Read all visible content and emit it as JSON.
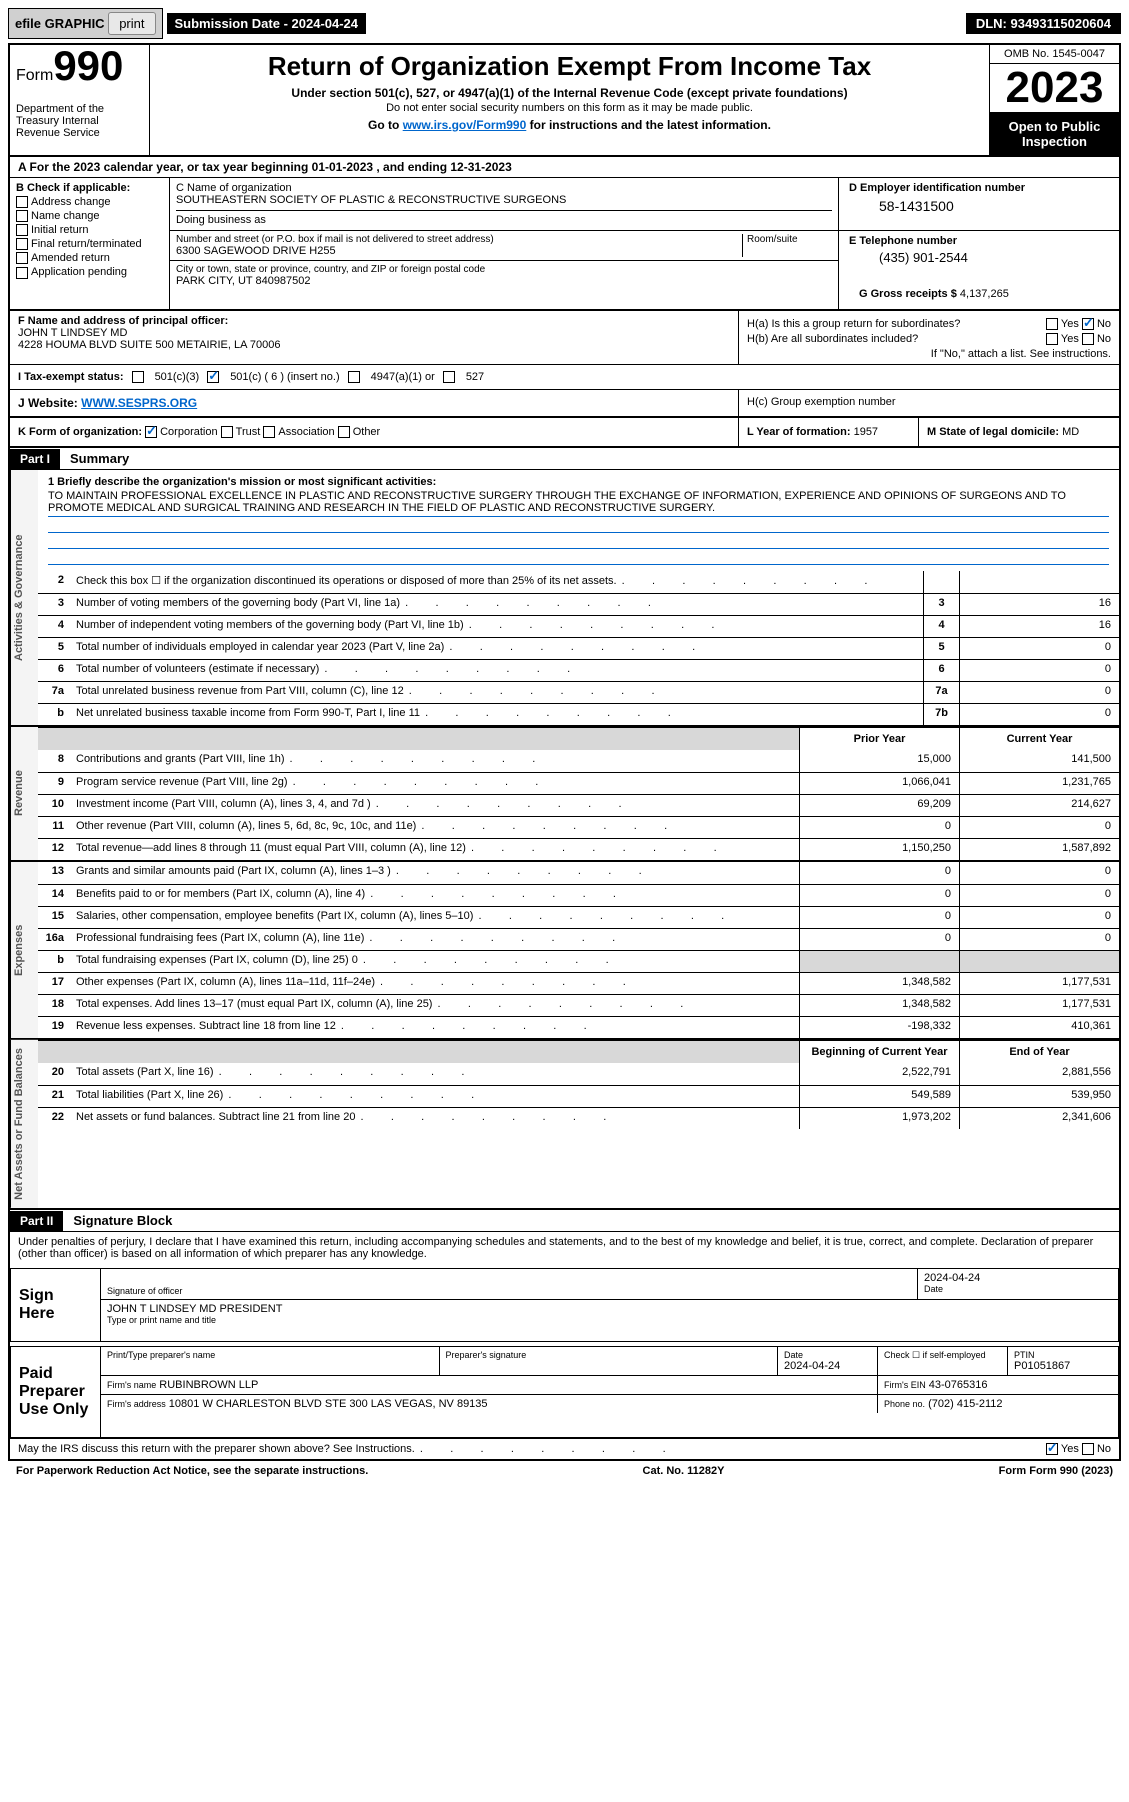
{
  "top": {
    "efile": "efile GRAPHIC",
    "print": "print",
    "submission": "Submission Date - 2024-04-24",
    "dln": "DLN: 93493115020604"
  },
  "header": {
    "form_label": "Form",
    "form_num": "990",
    "dept": "Department of the Treasury Internal Revenue Service",
    "title": "Return of Organization Exempt From Income Tax",
    "sub1": "Under section 501(c), 527, or 4947(a)(1) of the Internal Revenue Code (except private foundations)",
    "sub2": "Do not enter social security numbers on this form as it may be made public.",
    "goto_prefix": "Go to ",
    "goto_link": "www.irs.gov/Form990",
    "goto_suffix": " for instructions and the latest information.",
    "omb": "OMB No. 1545-0047",
    "year": "2023",
    "open": "Open to Public Inspection"
  },
  "row_a": "A  For the 2023 calendar year, or tax year beginning 01-01-2023   , and ending 12-31-2023",
  "col_b": {
    "label": "B Check if applicable:",
    "items": [
      "Address change",
      "Name change",
      "Initial return",
      "Final return/terminated",
      "Amended return",
      "Application pending"
    ]
  },
  "org": {
    "c_label": "C Name of organization",
    "name": "SOUTHEASTERN SOCIETY OF PLASTIC & RECONSTRUCTIVE SURGEONS",
    "dba_label": "Doing business as",
    "addr_label": "Number and street (or P.O. box if mail is not delivered to street address)",
    "room_label": "Room/suite",
    "addr": "6300 SAGEWOOD DRIVE H255",
    "city_label": "City or town, state or province, country, and ZIP or foreign postal code",
    "city": "PARK CITY, UT  840987502"
  },
  "ein": {
    "label": "D Employer identification number",
    "value": "58-1431500"
  },
  "tel": {
    "label": "E Telephone number",
    "value": "(435) 901-2544"
  },
  "gross": {
    "label": "G Gross receipts $",
    "value": "4,137,265"
  },
  "officer": {
    "label": "F Name and address of principal officer:",
    "name": "JOHN T LINDSEY MD",
    "addr": "4228 HOUMA BLVD SUITE 500 METAIRIE, LA   70006"
  },
  "h": {
    "ha": "H(a)  Is this a group return for subordinates?",
    "hb": "H(b)  Are all subordinates included?",
    "hb_note": "If \"No,\" attach a list. See instructions.",
    "hc": "H(c)  Group exemption number",
    "yes": "Yes",
    "no": "No"
  },
  "tax_exempt": {
    "label": "I  Tax-exempt status:",
    "opts": [
      "501(c)(3)",
      "501(c) ( 6 ) (insert no.)",
      "4947(a)(1) or",
      "527"
    ]
  },
  "website": {
    "label": "J  Website:",
    "value": "WWW.SESPRS.ORG"
  },
  "k": {
    "label": "K Form of organization:",
    "opts": [
      "Corporation",
      "Trust",
      "Association",
      "Other"
    ]
  },
  "l": {
    "label": "L Year of formation:",
    "value": "1957"
  },
  "m": {
    "label": "M State of legal domicile:",
    "value": "MD"
  },
  "parts": {
    "p1": "Part I",
    "p1_title": "Summary",
    "p2": "Part II",
    "p2_title": "Signature Block"
  },
  "mission": {
    "label": "1  Briefly describe the organization's mission or most significant activities:",
    "text": "TO MAINTAIN PROFESSIONAL EXCELLENCE IN PLASTIC AND RECONSTRUCTIVE SURGERY THROUGH THE EXCHANGE OF INFORMATION, EXPERIENCE AND OPINIONS OF SURGEONS AND TO PROMOTE MEDICAL AND SURGICAL TRAINING AND RESEARCH IN THE FIELD OF PLASTIC AND RECONSTRUCTIVE SURGERY."
  },
  "sidebars": {
    "s1": "Activities & Governance",
    "s2": "Revenue",
    "s3": "Expenses",
    "s4": "Net Assets or Fund Balances"
  },
  "gov_lines": [
    {
      "n": "2",
      "d": "Check this box ☐ if the organization discontinued its operations or disposed of more than 25% of its net assets.",
      "box": "",
      "v": ""
    },
    {
      "n": "3",
      "d": "Number of voting members of the governing body (Part VI, line 1a)",
      "box": "3",
      "v": "16"
    },
    {
      "n": "4",
      "d": "Number of independent voting members of the governing body (Part VI, line 1b)",
      "box": "4",
      "v": "16"
    },
    {
      "n": "5",
      "d": "Total number of individuals employed in calendar year 2023 (Part V, line 2a)",
      "box": "5",
      "v": "0"
    },
    {
      "n": "6",
      "d": "Total number of volunteers (estimate if necessary)",
      "box": "6",
      "v": "0"
    },
    {
      "n": "7a",
      "d": "Total unrelated business revenue from Part VIII, column (C), line 12",
      "box": "7a",
      "v": "0"
    },
    {
      "n": "b",
      "d": "Net unrelated business taxable income from Form 990-T, Part I, line 11",
      "box": "7b",
      "v": "0"
    }
  ],
  "rev_hdr": {
    "prior": "Prior Year",
    "current": "Current Year"
  },
  "rev_lines": [
    {
      "n": "8",
      "d": "Contributions and grants (Part VIII, line 1h)",
      "p": "15,000",
      "c": "141,500"
    },
    {
      "n": "9",
      "d": "Program service revenue (Part VIII, line 2g)",
      "p": "1,066,041",
      "c": "1,231,765"
    },
    {
      "n": "10",
      "d": "Investment income (Part VIII, column (A), lines 3, 4, and 7d )",
      "p": "69,209",
      "c": "214,627"
    },
    {
      "n": "11",
      "d": "Other revenue (Part VIII, column (A), lines 5, 6d, 8c, 9c, 10c, and 11e)",
      "p": "0",
      "c": "0"
    },
    {
      "n": "12",
      "d": "Total revenue—add lines 8 through 11 (must equal Part VIII, column (A), line 12)",
      "p": "1,150,250",
      "c": "1,587,892"
    }
  ],
  "exp_lines": [
    {
      "n": "13",
      "d": "Grants and similar amounts paid (Part IX, column (A), lines 1–3 )",
      "p": "0",
      "c": "0"
    },
    {
      "n": "14",
      "d": "Benefits paid to or for members (Part IX, column (A), line 4)",
      "p": "0",
      "c": "0"
    },
    {
      "n": "15",
      "d": "Salaries, other compensation, employee benefits (Part IX, column (A), lines 5–10)",
      "p": "0",
      "c": "0"
    },
    {
      "n": "16a",
      "d": "Professional fundraising fees (Part IX, column (A), line 11e)",
      "p": "0",
      "c": "0"
    },
    {
      "n": "b",
      "d": "Total fundraising expenses (Part IX, column (D), line 25) 0",
      "p": "",
      "c": "",
      "shaded": true
    },
    {
      "n": "17",
      "d": "Other expenses (Part IX, column (A), lines 11a–11d, 11f–24e)",
      "p": "1,348,582",
      "c": "1,177,531"
    },
    {
      "n": "18",
      "d": "Total expenses. Add lines 13–17 (must equal Part IX, column (A), line 25)",
      "p": "1,348,582",
      "c": "1,177,531"
    },
    {
      "n": "19",
      "d": "Revenue less expenses. Subtract line 18 from line 12",
      "p": "-198,332",
      "c": "410,361"
    }
  ],
  "net_hdr": {
    "begin": "Beginning of Current Year",
    "end": "End of Year"
  },
  "net_lines": [
    {
      "n": "20",
      "d": "Total assets (Part X, line 16)",
      "p": "2,522,791",
      "c": "2,881,556"
    },
    {
      "n": "21",
      "d": "Total liabilities (Part X, line 26)",
      "p": "549,589",
      "c": "539,950"
    },
    {
      "n": "22",
      "d": "Net assets or fund balances. Subtract line 21 from line 20",
      "p": "1,973,202",
      "c": "2,341,606"
    }
  ],
  "perjury": "Under penalties of perjury, I declare that I have examined this return, including accompanying schedules and statements, and to the best of my knowledge and belief, it is true, correct, and complete. Declaration of preparer (other than officer) is based on all information of which preparer has any knowledge.",
  "sign": {
    "label": "Sign Here",
    "sig_lbl": "Signature of officer",
    "date_lbl": "Date",
    "date": "2024-04-24",
    "name": "JOHN T LINDSEY MD PRESIDENT",
    "name_lbl": "Type or print name and title"
  },
  "preparer": {
    "label": "Paid Preparer Use Only",
    "print_lbl": "Print/Type preparer's name",
    "sig_lbl": "Preparer's signature",
    "date_lbl": "Date",
    "date": "2024-04-24",
    "check_lbl": "Check ☐ if self-employed",
    "ptin_lbl": "PTIN",
    "ptin": "P01051867",
    "firm_lbl": "Firm's name",
    "firm": "RUBINBROWN LLP",
    "ein_lbl": "Firm's EIN",
    "ein": "43-0765316",
    "addr_lbl": "Firm's address",
    "addr": "10801 W CHARLESTON BLVD STE 300 LAS VEGAS, NV   89135",
    "phone_lbl": "Phone no.",
    "phone": "(702) 415-2112"
  },
  "discuss": "May the IRS discuss this return with the preparer shown above? See Instructions.",
  "footer": {
    "pra": "For Paperwork Reduction Act Notice, see the separate instructions.",
    "cat": "Cat. No. 11282Y",
    "form": "Form 990 (2023)"
  }
}
